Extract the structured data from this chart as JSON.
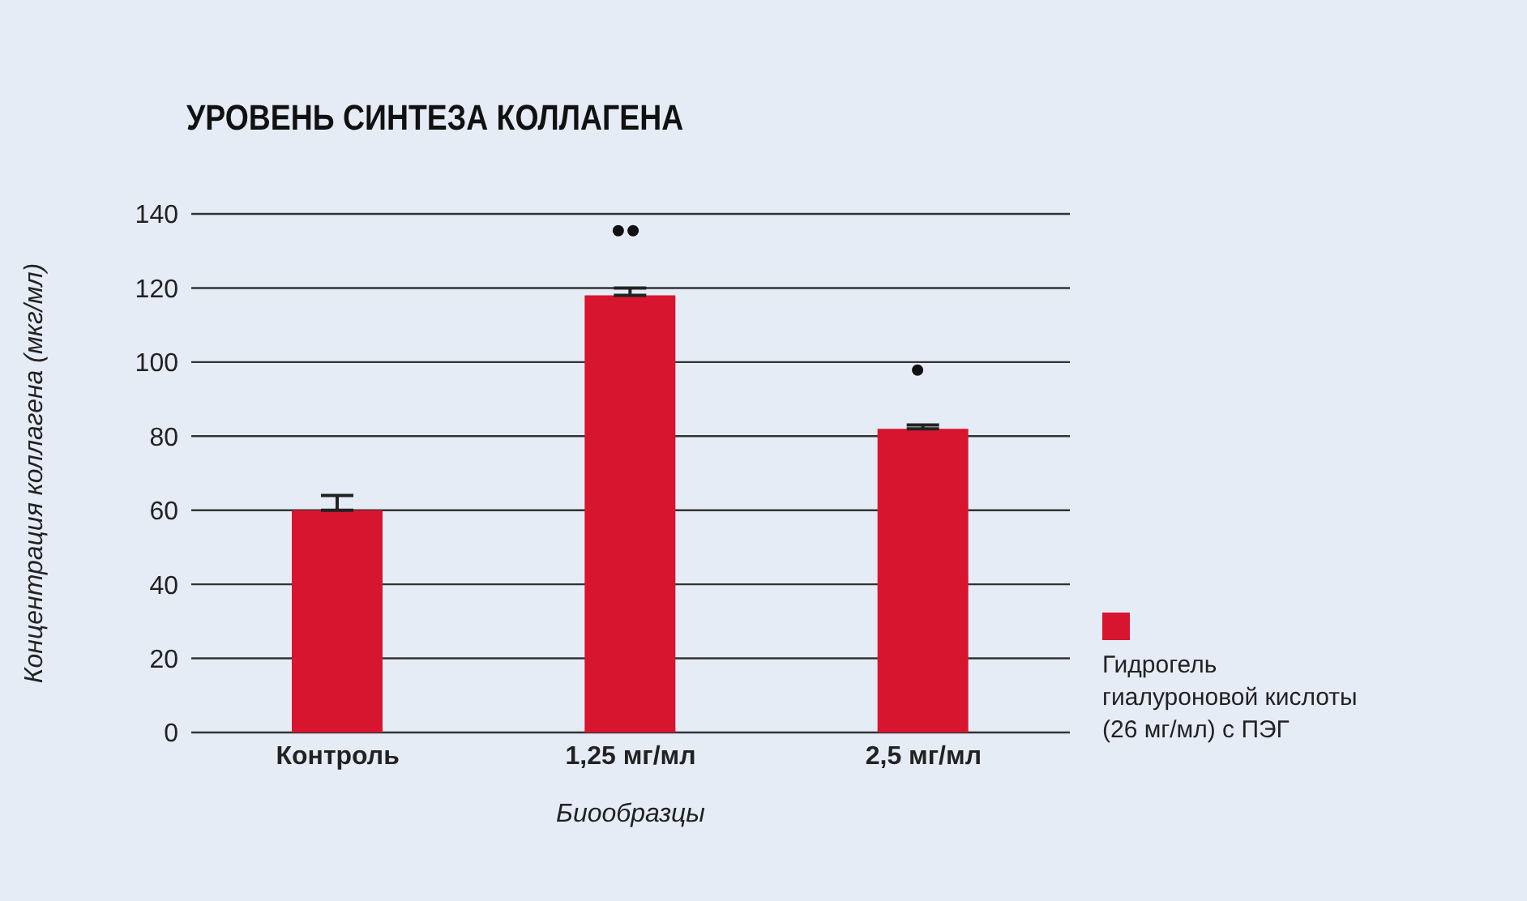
{
  "chart_data": {
    "type": "bar",
    "title": "УРОВЕНЬ СИНТЕЗА КОЛЛАГЕНА",
    "xlabel": "Биообразцы",
    "ylabel": "Концентрация коллагена (мкг/мл)",
    "categories": [
      "Контроль",
      "1,25 мг/мл",
      "2,5 мг/мл"
    ],
    "series": [
      {
        "name": "Гидрогель гиалуроновой кислоты (26 мг/мл) с ПЭГ",
        "color": "#d7152f",
        "values": [
          60,
          118,
          82
        ],
        "errors": [
          [
            60,
            64
          ],
          [
            118,
            120
          ],
          [
            82,
            83
          ]
        ]
      }
    ],
    "annotations": [
      "••",
      "•"
    ],
    "ylim": [
      0,
      140
    ],
    "yticks": [
      0,
      20,
      40,
      60,
      80,
      100,
      120,
      140
    ],
    "grid": "y",
    "legend": "right"
  }
}
